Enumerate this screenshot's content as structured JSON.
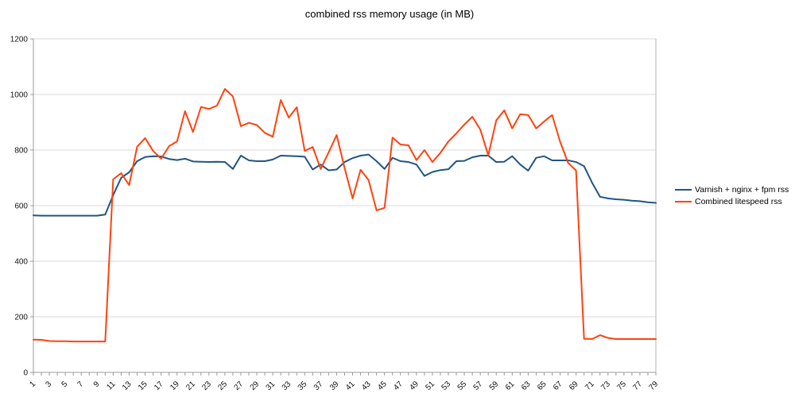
{
  "title": "combined rss memory usage (in MB)",
  "legend": {
    "entries": [
      {
        "label": "Varnish + nginx + fpm rss",
        "color": "#1f5582"
      },
      {
        "label": "Combined litespeed rss",
        "color": "#ff420e"
      }
    ]
  },
  "axis": {
    "y_tick_labels": [
      "0",
      "200",
      "400",
      "600",
      "800",
      "1000",
      "1200"
    ],
    "x_labeled_ticks": "odd numbers 1 through 79"
  },
  "style": {
    "grid_color": "#d9d9d9",
    "axis_color": "#9b9b9b",
    "border_color": "#b3b3b3",
    "label_color": "#111111",
    "background": "#ffffff"
  },
  "chart_data": {
    "type": "line",
    "title": "combined rss memory usage (in MB)",
    "xlabel": "",
    "ylabel": "",
    "ylim": [
      0,
      1200
    ],
    "y_ticks": [
      0,
      200,
      400,
      600,
      800,
      1000,
      1200
    ],
    "grid": "horizontal",
    "legend_position": "right",
    "x": [
      1,
      2,
      3,
      4,
      5,
      6,
      7,
      8,
      9,
      10,
      11,
      12,
      13,
      14,
      15,
      16,
      17,
      18,
      19,
      20,
      21,
      22,
      23,
      24,
      25,
      26,
      27,
      28,
      29,
      30,
      31,
      32,
      33,
      34,
      35,
      36,
      37,
      38,
      39,
      40,
      41,
      42,
      43,
      44,
      45,
      46,
      47,
      48,
      49,
      50,
      51,
      52,
      53,
      54,
      55,
      56,
      57,
      58,
      59,
      60,
      61,
      62,
      63,
      64,
      65,
      66,
      67,
      68,
      69,
      70,
      71,
      72,
      73,
      74,
      75,
      76,
      77,
      78,
      79
    ],
    "series": [
      {
        "name": "Varnish + nginx + fpm rss",
        "color": "#1f5582",
        "values": [
          565,
          564,
          564,
          564,
          564,
          564,
          564,
          564,
          564,
          568,
          638,
          700,
          720,
          760,
          775,
          778,
          777,
          768,
          764,
          769,
          759,
          758,
          757,
          758,
          757,
          732,
          780,
          763,
          760,
          760,
          766,
          780,
          779,
          778,
          776,
          730,
          748,
          727,
          730,
          757,
          771,
          780,
          784,
          760,
          732,
          772,
          760,
          757,
          748,
          707,
          721,
          728,
          731,
          760,
          761,
          774,
          780,
          780,
          757,
          758,
          778,
          748,
          726,
          772,
          778,
          763,
          763,
          763,
          757,
          742,
          683,
          632,
          626,
          623,
          621,
          618,
          616,
          612,
          610
        ]
      },
      {
        "name": "Combined litespeed rss",
        "color": "#ff420e",
        "values": [
          118,
          117,
          113,
          112,
          112,
          111,
          111,
          111,
          111,
          111,
          695,
          717,
          674,
          812,
          843,
          797,
          769,
          814,
          831,
          940,
          865,
          955,
          948,
          960,
          1020,
          993,
          886,
          898,
          890,
          862,
          848,
          980,
          917,
          954,
          797,
          811,
          732,
          792,
          854,
          735,
          626,
          729,
          692,
          583,
          592,
          845,
          820,
          817,
          764,
          800,
          757,
          790,
          831,
          860,
          892,
          920,
          874,
          781,
          907,
          943,
          878,
          929,
          926,
          878,
          903,
          926,
          830,
          754,
          726,
          121,
          120,
          134,
          124,
          120,
          120,
          120,
          120,
          120,
          120
        ]
      }
    ]
  }
}
